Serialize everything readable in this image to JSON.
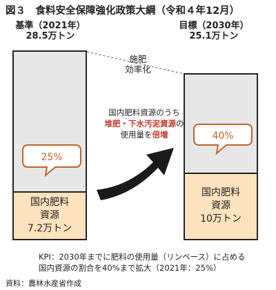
{
  "title": "図３　食料安全保障強化政策大綱（令和４年12月）",
  "chart_data": {
    "type": "bar",
    "stacked": true,
    "categories": [
      "基準（2021年）",
      "目標（2030年）"
    ],
    "totals_label": [
      "28.5万トン",
      "25.1万トン"
    ],
    "totals": [
      28.5,
      25.1
    ],
    "series": [
      {
        "values": [
          7.2,
          10.0
        ],
        "labels": [
          "国内肥料資源 7.2万トン",
          "国内肥料資源 10万トン"
        ],
        "color": "#fce2bd"
      },
      {
        "values": [
          21.3,
          15.1
        ],
        "color": "#e7e7e7"
      }
    ],
    "share_labels": [
      "25%",
      "40%"
    ],
    "annotations": {
      "efficiency": [
        "施肥",
        "効率化"
      ],
      "middle_line1": "国内肥料資源のうち",
      "middle_highlight": "堆肥・下水汚泥資源",
      "middle_after_highlight": "の",
      "middle_line3_pre": "使用量を",
      "middle_line3_highlight": "倍増"
    },
    "legend": "none",
    "grid": false
  },
  "base": {
    "label": "基準（2021年）",
    "total": "28.5万トン",
    "domestic_lines": [
      "国内肥料",
      "資源",
      "7.2万トン"
    ],
    "share": "25%"
  },
  "target": {
    "label": "目標（2030年）",
    "total": "25.1万トン",
    "domestic_lines": [
      "国内肥料",
      "資源",
      "10万トン"
    ],
    "share": "40%"
  },
  "kpi": {
    "line1": "KPI：2030年までに肥料の使用量（リンベース）に占める",
    "line2": "国内資源の割合を40%まで拡大（2021年：25%）"
  },
  "source": "資料：農林水産省作成",
  "colors": {
    "accent": "#c0392b",
    "bubble_border": "#c0622b",
    "gray_bar": "#e7e7e7",
    "domestic_bar": "#fce2bd"
  }
}
